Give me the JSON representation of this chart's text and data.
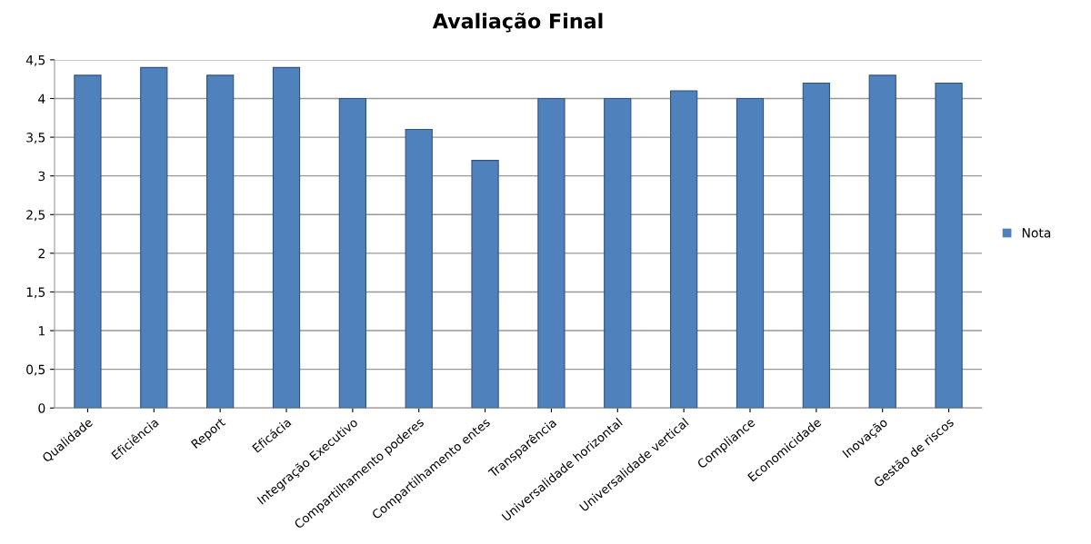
{
  "chart_data": {
    "type": "bar",
    "title": "Avaliação Final",
    "categories": [
      "Qualidade",
      "Eficiência",
      "Report",
      "Eficácia",
      "Integração Executivo",
      "Compartilhamento poderes",
      "Compartilhamento entes",
      "Transparência",
      "Universalidade horizontal",
      "Universalidade vertical",
      "Compliance",
      "Economicidade",
      "Inovação",
      "Gestão de riscos"
    ],
    "series": [
      {
        "name": "Nota",
        "color": "#4f81bd",
        "values": [
          4.3,
          4.4,
          4.3,
          4.4,
          4.0,
          3.6,
          3.2,
          4.0,
          4.0,
          4.1,
          4.0,
          4.2,
          4.3,
          4.2
        ]
      }
    ],
    "ylim": [
      0,
      4.5
    ],
    "yticks": [
      0,
      {
        "value": 0.5,
        "label": "0,5"
      },
      1,
      {
        "value": 1.5,
        "label": "1,5"
      },
      2,
      {
        "value": 2.5,
        "label": "2,5"
      },
      3,
      {
        "value": 3.5,
        "label": "3,5"
      },
      4,
      {
        "value": 4.5,
        "label": "4,5"
      }
    ],
    "grid": "y",
    "legend": "right"
  }
}
